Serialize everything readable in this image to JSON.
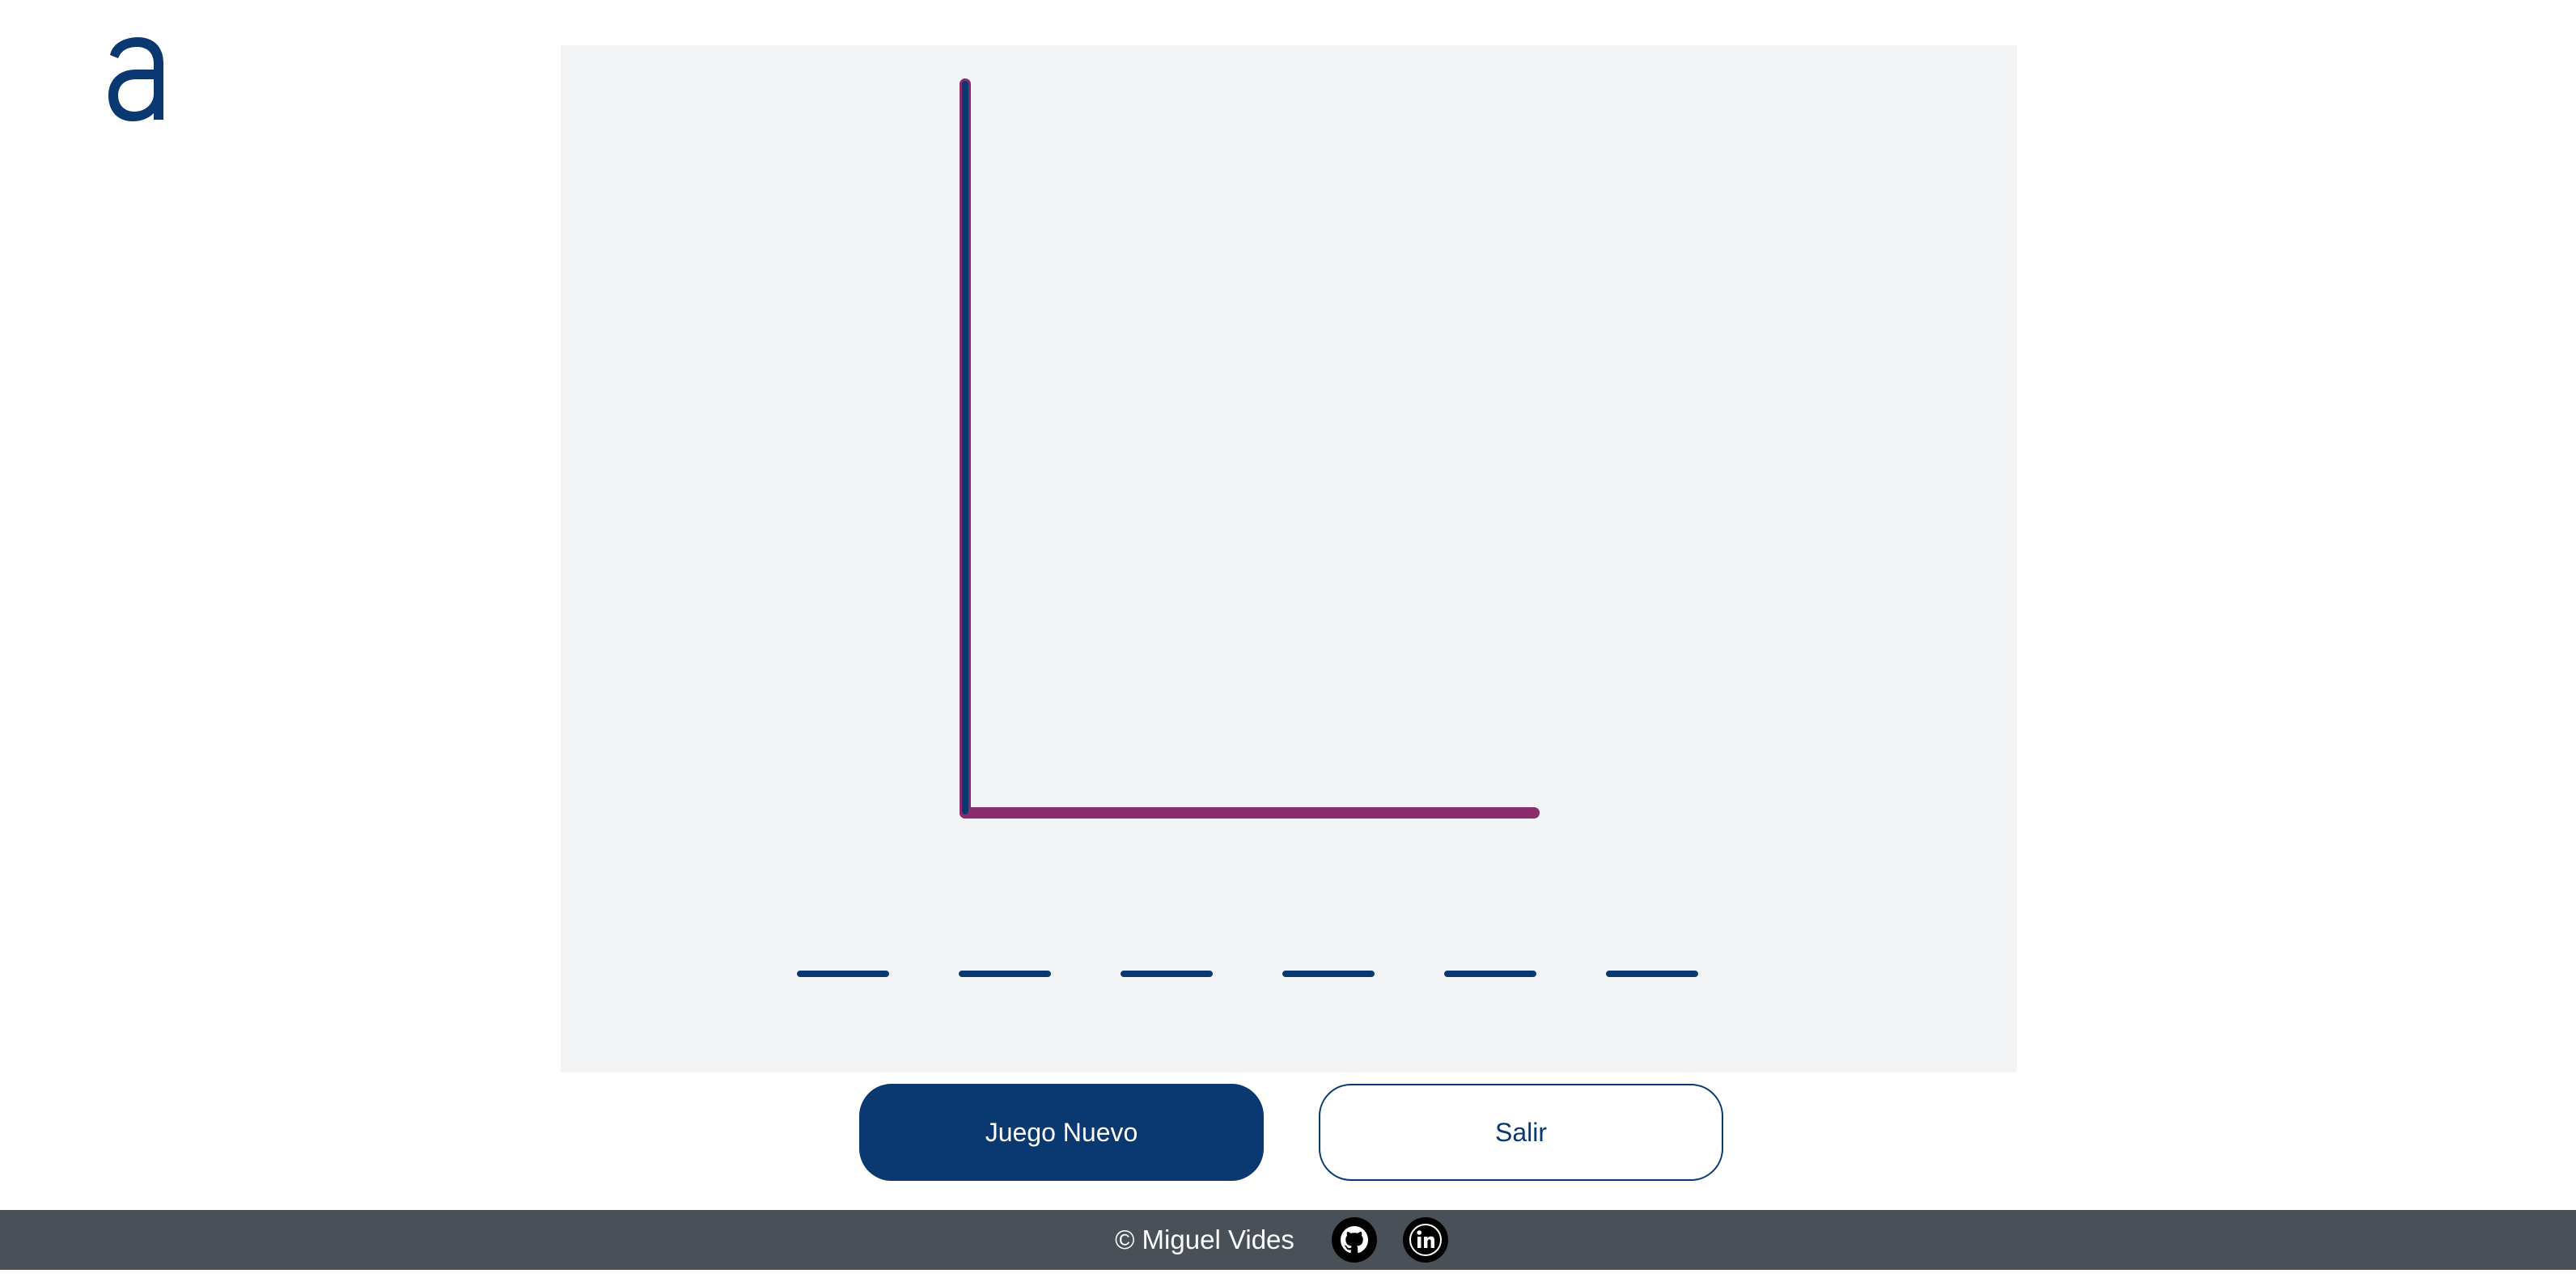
{
  "colors": {
    "brand": "#0a3871",
    "board_bg": "#f3f4f6",
    "gallows_post": "#0a3871",
    "gallows_base": "#892c6e",
    "footer_bg": "#495057"
  },
  "logo": {
    "icon": "a-logo-icon"
  },
  "game": {
    "letter_slots": [
      "",
      "",
      "",
      "",
      "",
      ""
    ],
    "gallows_parts_drawn": [
      "post",
      "base"
    ]
  },
  "buttons": {
    "new_game_label": "Juego Nuevo",
    "exit_label": "Salir"
  },
  "footer": {
    "credit": "© Miguel Vides",
    "links": [
      {
        "icon": "github-icon"
      },
      {
        "icon": "linkedin-icon"
      }
    ]
  }
}
